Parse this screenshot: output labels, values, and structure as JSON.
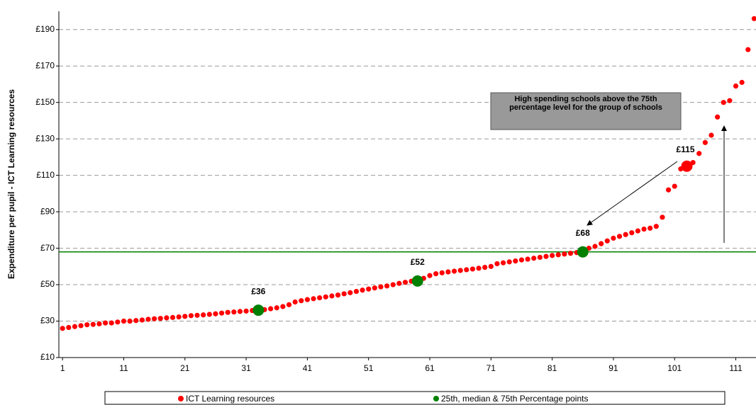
{
  "chart_data": {
    "type": "scatter",
    "y_label": "Expenditure per pupil - ICT Learning resources",
    "xlim": [
      0.4,
      114.3
    ],
    "xticks": [
      1,
      11,
      21,
      31,
      41,
      51,
      61,
      71,
      81,
      91,
      101,
      111
    ],
    "ylim": [
      10,
      200
    ],
    "yticks": [
      {
        "value": 10,
        "label": "£10"
      },
      {
        "value": 30,
        "label": "£30"
      },
      {
        "value": 50,
        "label": "£50"
      },
      {
        "value": 70,
        "label": "£70"
      },
      {
        "value": 90,
        "label": "£90"
      },
      {
        "value": 110,
        "label": "£110"
      },
      {
        "value": 130,
        "label": "£130"
      },
      {
        "value": 150,
        "label": "£150"
      },
      {
        "value": 170,
        "label": "£170"
      },
      {
        "value": 190,
        "label": "£190"
      }
    ],
    "grid": true,
    "series": [
      {
        "name": "ICT Learning resources",
        "color": "#ff0000",
        "x": [
          1,
          2,
          3,
          4,
          5,
          6,
          7,
          8,
          9,
          10,
          11,
          12,
          13,
          14,
          15,
          16,
          17,
          18,
          19,
          20,
          21,
          22,
          23,
          24,
          25,
          26,
          27,
          28,
          29,
          30,
          31,
          32,
          33,
          34,
          35,
          36,
          37,
          38,
          39,
          40,
          41,
          42,
          43,
          44,
          45,
          46,
          47,
          48,
          49,
          50,
          51,
          52,
          53,
          54,
          55,
          56,
          57,
          58,
          59,
          60,
          61,
          62,
          63,
          64,
          65,
          66,
          67,
          68,
          69,
          70,
          71,
          72,
          73,
          74,
          75,
          76,
          77,
          78,
          79,
          80,
          81,
          82,
          83,
          84,
          85,
          86,
          87,
          88,
          89,
          90,
          91,
          92,
          93,
          94,
          95,
          96,
          97,
          98,
          99,
          100,
          101,
          102,
          103,
          104,
          105,
          106,
          107,
          108,
          109,
          110,
          111,
          112,
          113,
          114
        ],
        "values": [
          26,
          26.5,
          27,
          27.5,
          28,
          28.2,
          28.5,
          29,
          29,
          29.5,
          30,
          30,
          30.3,
          30.6,
          31,
          31.3,
          31.5,
          31.8,
          32,
          32.3,
          32.6,
          33,
          33.2,
          33.4,
          33.7,
          34,
          34.4,
          34.8,
          35,
          35.3,
          35.5,
          35.8,
          36,
          36.3,
          36.8,
          37.3,
          38,
          39,
          40.5,
          41.2,
          41.8,
          42.3,
          42.8,
          43.3,
          43.8,
          44.3,
          45,
          45.6,
          46.3,
          47,
          47.6,
          48.2,
          48.8,
          49.3,
          50,
          50.7,
          51.3,
          51.9,
          52.5,
          53.5,
          55,
          56,
          56.5,
          57,
          57.4,
          57.8,
          58.2,
          58.6,
          59,
          59.5,
          60,
          61.5,
          62,
          62.5,
          63,
          63.6,
          64,
          64.5,
          65,
          65.5,
          66,
          66.4,
          66.8,
          67.2,
          67.6,
          68.3,
          70,
          71,
          72.5,
          74,
          75.5,
          76.5,
          77.5,
          78.5,
          79.5,
          80.5,
          81,
          82,
          87,
          102,
          104,
          113.5,
          115,
          117,
          122,
          128,
          132,
          142,
          150,
          151,
          159,
          161,
          179,
          196
        ]
      },
      {
        "name": "25th, median & 75th Percentage points",
        "color": "#008000",
        "x": [
          33,
          59,
          86
        ],
        "values": [
          36,
          52,
          68
        ],
        "value_labels": [
          "£36",
          "£52",
          "£68"
        ]
      }
    ],
    "highlight": {
      "x": 103,
      "value": 115,
      "value_label": "£115",
      "color": "#ff0000"
    },
    "reference_line": {
      "value": 68,
      "color": "#008000"
    },
    "annotation": "High spending schools above the 75th percentage level for the group of schools"
  }
}
